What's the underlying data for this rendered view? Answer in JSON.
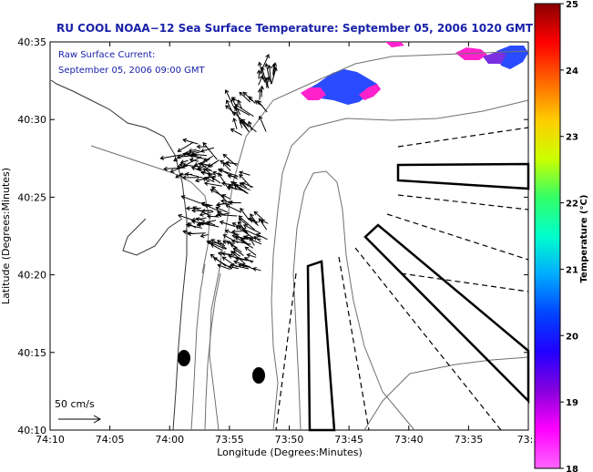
{
  "title": "RU COOL  NOAA−12  Sea Surface Temperature:  September 05, 2006 1020 GMT",
  "annotation": {
    "line1": "Raw Surface Current:",
    "line2": "September 05, 2006 09:00 GMT"
  },
  "scale_label": "50 cm/s",
  "x_axis": {
    "label": "Longitude (Degrees:Minutes)",
    "ticks": [
      "74:10",
      "74:05",
      "74:00",
      "73:55",
      "73:50",
      "73:45",
      "73:40",
      "73:35",
      "73:3"
    ]
  },
  "y_axis": {
    "label": "Latitude (Degrees:Minutes)",
    "ticks": [
      "40:35",
      "40:30",
      "40:25",
      "40:20",
      "40:15",
      "40:10"
    ]
  },
  "colorbar": {
    "label": "Temperature (°C)",
    "ticks": [
      "25",
      "24",
      "23",
      "22",
      "21",
      "20",
      "19",
      "18"
    ],
    "colors": [
      "#8a0000",
      "#ff0000",
      "#ff6600",
      "#ffcc00",
      "#ccff00",
      "#33ff66",
      "#00ffcc",
      "#00aaff",
      "#0044ff",
      "#2200ff",
      "#8800dd",
      "#ff00ff",
      "#ff66ff"
    ]
  },
  "map_colors": {
    "sst_blue": "#2a4bff",
    "sst_magenta": "#ff22cc",
    "sst_purple": "#7a30e0",
    "frame": "#000000"
  }
}
